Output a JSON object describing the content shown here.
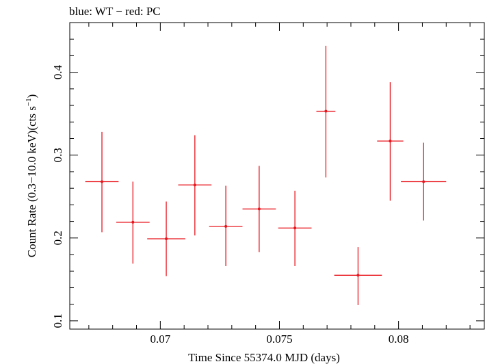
{
  "chart_data": {
    "type": "scatter",
    "title": "blue: WT − red: PC",
    "xlabel": "Time Since 55374.0 MJD (days)",
    "ylabel": "Count Rate (0.3−10.0 keV)(cts s",
    "ylabel_sup": "−1",
    "ylabel_tail": ")",
    "xlim": [
      0.0662,
      0.0836
    ],
    "ylim": [
      0.09,
      0.46
    ],
    "grid": false,
    "x_ticks": [
      {
        "value": 0.07,
        "label": "0.07"
      },
      {
        "value": 0.075,
        "label": "0.075"
      },
      {
        "value": 0.08,
        "label": "0.08"
      }
    ],
    "y_ticks": [
      {
        "value": 0.1,
        "label": "0.1"
      },
      {
        "value": 0.2,
        "label": "0.2"
      },
      {
        "value": 0.3,
        "label": "0.3"
      },
      {
        "value": 0.4,
        "label": "0.4"
      }
    ],
    "x_minor_step": 0.001,
    "y_minor_step": 0.02,
    "series": [
      {
        "color": "#e8141c",
        "points": [
          {
            "x": 0.06755,
            "xerr": 0.0007,
            "y": 0.268,
            "ylo": 0.207,
            "yhi": 0.328
          },
          {
            "x": 0.06885,
            "xerr": 0.0007,
            "y": 0.219,
            "ylo": 0.169,
            "yhi": 0.268
          },
          {
            "x": 0.07025,
            "xerr": 0.0008,
            "y": 0.199,
            "ylo": 0.154,
            "yhi": 0.244
          },
          {
            "x": 0.07145,
            "xerr": 0.0007,
            "y": 0.264,
            "ylo": 0.203,
            "yhi": 0.324
          },
          {
            "x": 0.07275,
            "xerr": 0.0007,
            "y": 0.214,
            "ylo": 0.166,
            "yhi": 0.263
          },
          {
            "x": 0.07415,
            "xerr": 0.0007,
            "y": 0.235,
            "ylo": 0.183,
            "yhi": 0.287
          },
          {
            "x": 0.07565,
            "xerr": 0.0007,
            "y": 0.212,
            "ylo": 0.166,
            "yhi": 0.257
          },
          {
            "x": 0.07695,
            "xerr": 0.0004,
            "y": 0.353,
            "ylo": 0.273,
            "yhi": 0.432
          },
          {
            "x": 0.0783,
            "xerr": 0.001,
            "y": 0.155,
            "ylo": 0.119,
            "yhi": 0.189
          },
          {
            "x": 0.07965,
            "xerr": 0.00055,
            "y": 0.317,
            "ylo": 0.245,
            "yhi": 0.388
          },
          {
            "x": 0.08105,
            "xerr": 0.00095,
            "y": 0.268,
            "ylo": 0.221,
            "yhi": 0.315
          }
        ]
      }
    ]
  }
}
